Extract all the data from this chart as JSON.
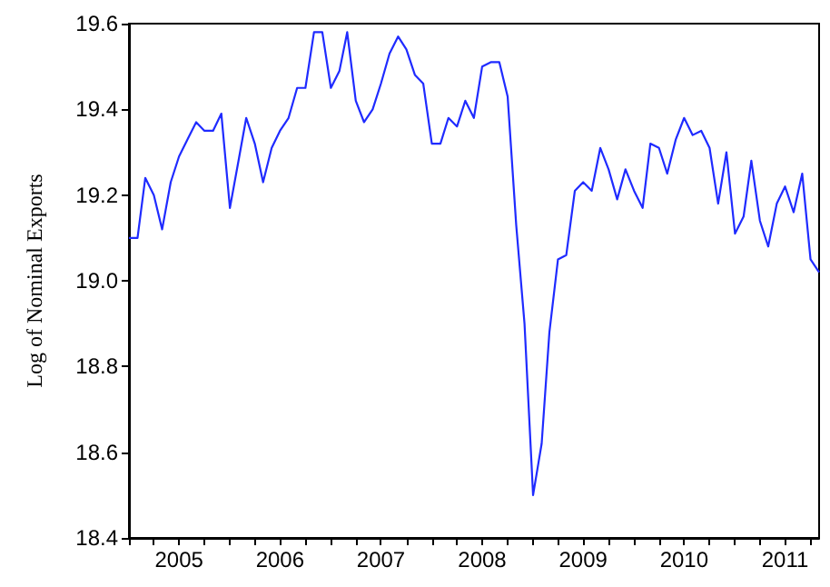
{
  "chart_data": {
    "type": "line",
    "ylabel": "Log of Nominal Exports",
    "x": [
      "2005-01",
      "2005-02",
      "2005-03",
      "2005-04",
      "2005-05",
      "2005-06",
      "2005-07",
      "2005-08",
      "2005-09",
      "2005-10",
      "2005-11",
      "2005-12",
      "2006-01",
      "2006-02",
      "2006-03",
      "2006-04",
      "2006-05",
      "2006-06",
      "2006-07",
      "2006-08",
      "2006-09",
      "2006-10",
      "2006-11",
      "2006-12",
      "2007-01",
      "2007-02",
      "2007-03",
      "2007-04",
      "2007-05",
      "2007-06",
      "2007-07",
      "2007-08",
      "2007-09",
      "2007-10",
      "2007-11",
      "2007-12",
      "2008-01",
      "2008-02",
      "2008-03",
      "2008-04",
      "2008-05",
      "2008-06",
      "2008-07",
      "2008-08",
      "2008-09",
      "2008-10",
      "2008-11",
      "2008-12",
      "2009-01",
      "2009-02",
      "2009-03",
      "2009-04",
      "2009-05",
      "2009-06",
      "2009-07",
      "2009-08",
      "2009-09",
      "2009-10",
      "2009-11",
      "2009-12",
      "2010-01",
      "2010-02",
      "2010-03",
      "2010-04",
      "2010-05",
      "2010-06",
      "2010-07",
      "2010-08",
      "2010-09",
      "2010-10",
      "2010-11",
      "2010-12",
      "2011-01",
      "2011-02",
      "2011-03",
      "2011-04",
      "2011-05",
      "2011-06",
      "2011-07",
      "2011-08",
      "2011-09",
      "2011-10",
      "2011-11"
    ],
    "series": [
      {
        "color": "#1f2bff",
        "values": [
          19.1,
          19.1,
          19.24,
          19.2,
          19.12,
          19.23,
          19.29,
          19.33,
          19.37,
          19.35,
          19.35,
          19.39,
          19.17,
          19.28,
          19.38,
          19.32,
          19.23,
          19.31,
          19.35,
          19.38,
          19.45,
          19.45,
          19.58,
          19.58,
          19.45,
          19.49,
          19.58,
          19.42,
          19.37,
          19.4,
          19.46,
          19.53,
          19.57,
          19.54,
          19.48,
          19.46,
          19.32,
          19.32,
          19.38,
          19.36,
          19.42,
          19.38,
          19.5,
          19.51,
          19.51,
          19.43,
          19.13,
          18.9,
          18.5,
          18.62,
          18.88,
          19.05,
          19.06,
          19.21,
          19.23,
          19.21,
          19.31,
          19.26,
          19.19,
          19.26,
          19.21,
          19.17,
          19.32,
          19.31,
          19.25,
          19.33,
          19.38,
          19.34,
          19.35,
          19.31,
          19.18,
          19.3,
          19.11,
          19.15,
          19.28,
          19.14,
          19.08,
          19.18,
          19.22,
          19.16,
          19.25,
          19.05,
          19.02
        ]
      }
    ],
    "xlim": [
      "2005-01",
      "2011-11"
    ],
    "xticks": [
      {
        "value": "2005-01",
        "label": null
      },
      {
        "value": "2005-04",
        "label": null
      },
      {
        "value": "2005-07",
        "label": "2005"
      },
      {
        "value": "2005-10",
        "label": null
      },
      {
        "value": "2006-01",
        "label": null
      },
      {
        "value": "2006-04",
        "label": null
      },
      {
        "value": "2006-07",
        "label": "2006"
      },
      {
        "value": "2006-10",
        "label": null
      },
      {
        "value": "2007-01",
        "label": null
      },
      {
        "value": "2007-04",
        "label": null
      },
      {
        "value": "2007-07",
        "label": "2007"
      },
      {
        "value": "2007-10",
        "label": null
      },
      {
        "value": "2008-01",
        "label": null
      },
      {
        "value": "2008-04",
        "label": null
      },
      {
        "value": "2008-07",
        "label": "2008"
      },
      {
        "value": "2008-10",
        "label": null
      },
      {
        "value": "2009-01",
        "label": null
      },
      {
        "value": "2009-04",
        "label": null
      },
      {
        "value": "2009-07",
        "label": "2009"
      },
      {
        "value": "2009-10",
        "label": null
      },
      {
        "value": "2010-01",
        "label": null
      },
      {
        "value": "2010-04",
        "label": null
      },
      {
        "value": "2010-07",
        "label": "2010"
      },
      {
        "value": "2010-10",
        "label": null
      },
      {
        "value": "2011-01",
        "label": null
      },
      {
        "value": "2011-04",
        "label": null
      },
      {
        "value": "2011-07",
        "label": "2011"
      },
      {
        "value": "2011-10",
        "label": null
      }
    ],
    "ylim": [
      18.4,
      19.6
    ],
    "yticks": [
      {
        "value": 18.4,
        "label": "18.4"
      },
      {
        "value": 18.6,
        "label": "18.6"
      },
      {
        "value": 18.8,
        "label": "18.8"
      },
      {
        "value": 19.0,
        "label": "19.0"
      },
      {
        "value": 19.2,
        "label": "19.2"
      },
      {
        "value": 19.4,
        "label": "19.4"
      },
      19.6
    ],
    "grid": false,
    "marker": "none",
    "line_style": "solid"
  }
}
